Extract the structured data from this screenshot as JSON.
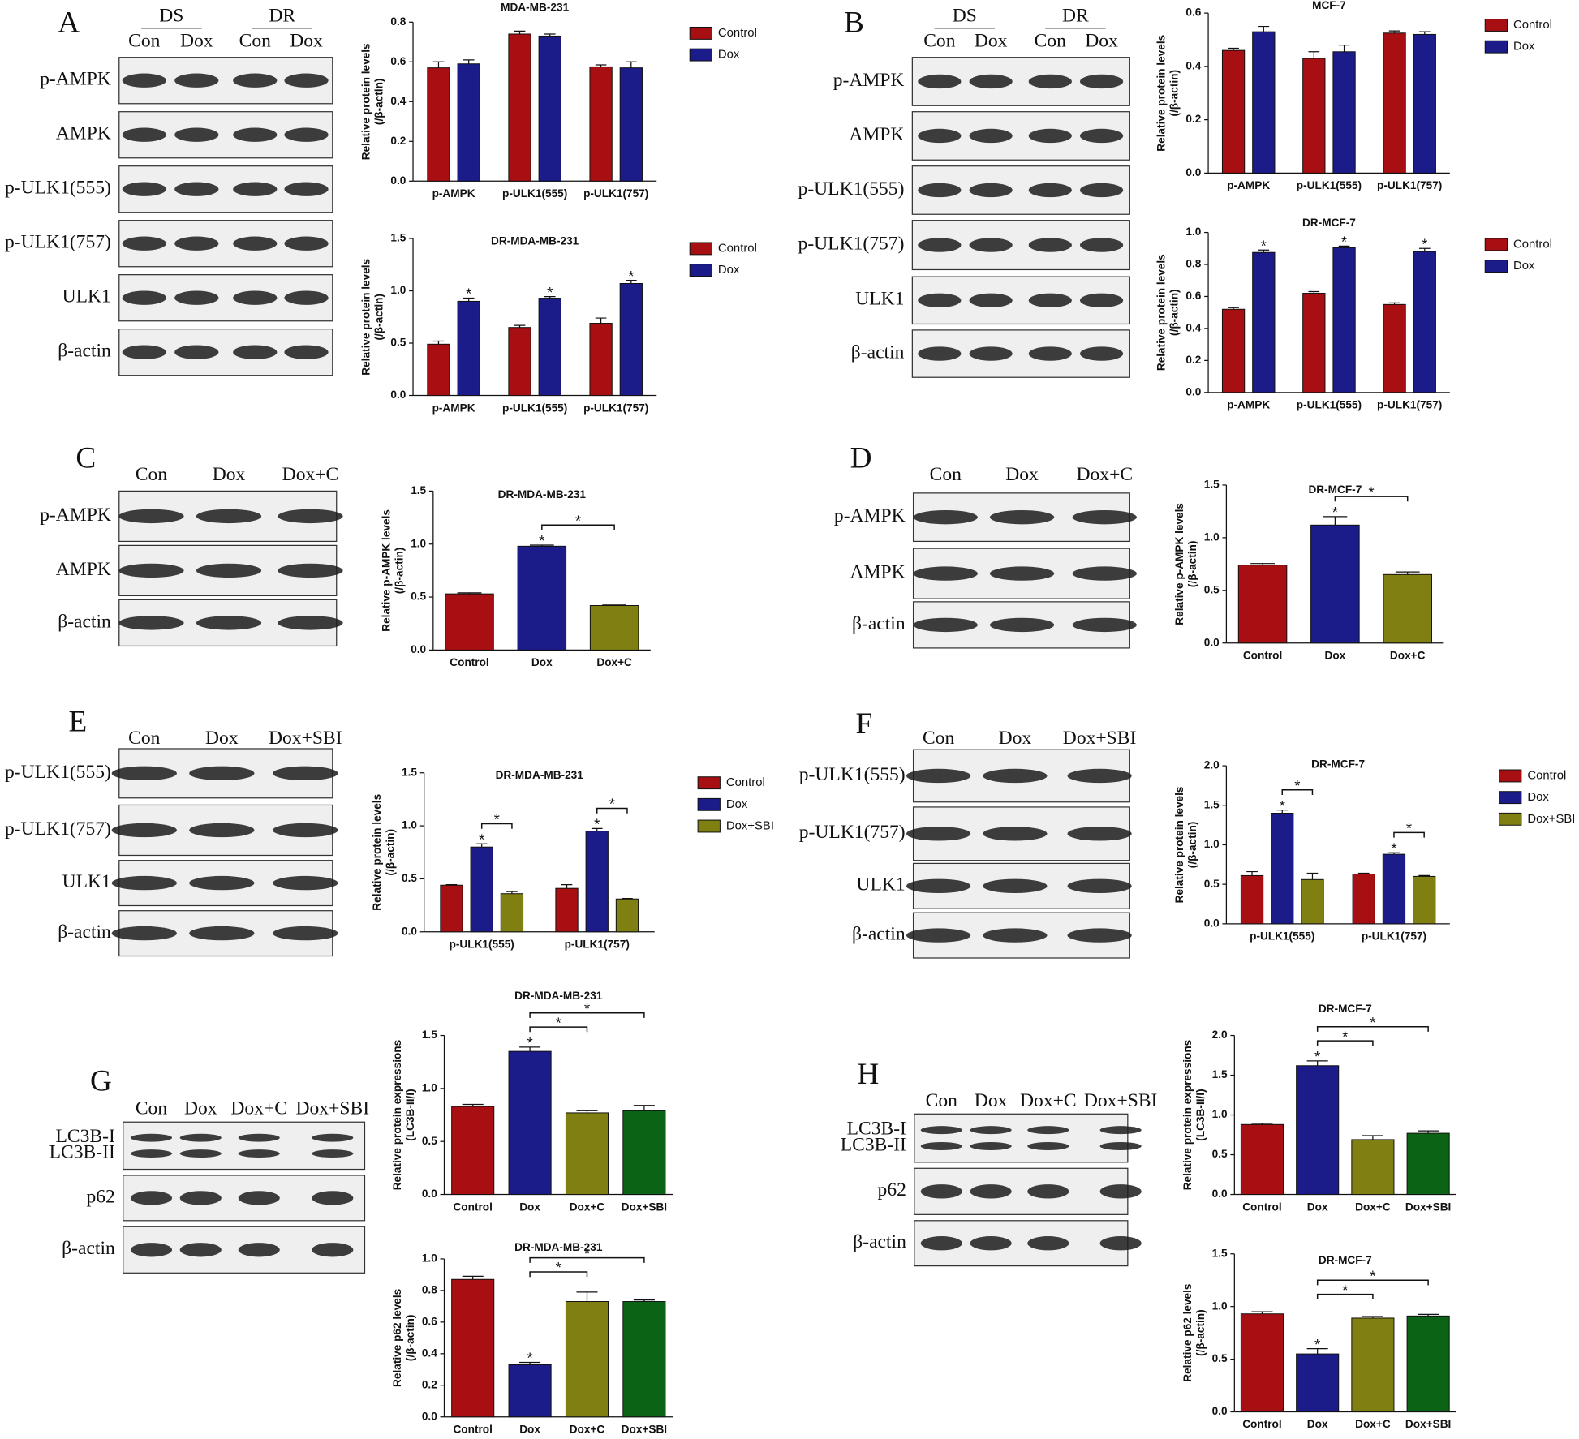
{
  "chart_data": [
    {
      "type": "bar",
      "title": "MDA-MB-231",
      "ylabel": [
        "Relative protein levels",
        "(/β-actin)"
      ],
      "categories": [
        "p-AMPK",
        "p-ULK1(555)",
        "p-ULK1(757)"
      ],
      "series": [
        {
          "name": "Control",
          "color": "#a80f12",
          "values": [
            0.57,
            0.74,
            0.575
          ],
          "errors": [
            0.03,
            0.015,
            0.01
          ]
        },
        {
          "name": "Dox",
          "color": "#1b1b8a",
          "values": [
            0.59,
            0.73,
            0.57
          ],
          "errors": [
            0.02,
            0.01,
            0.03
          ]
        }
      ],
      "ylim": [
        0,
        0.8
      ],
      "yticks": [
        {
          "value": 0,
          "label": "0.0"
        },
        0.2,
        0.4,
        0.6,
        0.8
      ],
      "annotations": []
    },
    {
      "type": "bar",
      "title": "DR-MDA-MB-231",
      "ylabel": [
        "Relative protein levels",
        "(/β-actin)"
      ],
      "categories": [
        "p-AMPK",
        "p-ULK1(555)",
        "p-ULK1(757)"
      ],
      "series": [
        {
          "name": "Control",
          "color": "#a80f12",
          "values": [
            0.49,
            0.65,
            0.69
          ],
          "errors": [
            0.03,
            0.02,
            0.05
          ]
        },
        {
          "name": "Dox",
          "color": "#1b1b8a",
          "values": [
            0.9,
            0.93,
            1.07
          ],
          "errors": [
            0.03,
            0.015,
            0.03
          ]
        }
      ],
      "ylim": [
        0,
        1.5
      ],
      "yticks": [
        {
          "value": 0,
          "label": "0.0"
        },
        0.5,
        {
          "value": 1,
          "label": "1.0"
        },
        1.5
      ],
      "annotations": [
        {
          "label": "*",
          "series": 1,
          "index": 0
        },
        {
          "label": "*",
          "series": 1,
          "index": 1
        },
        {
          "label": "*",
          "series": 1,
          "index": 2
        }
      ]
    },
    {
      "type": "bar",
      "title": "MCF-7",
      "ylabel": [
        "Relative protein levels",
        "(/β-actin)"
      ],
      "categories": [
        "p-AMPK",
        "p-ULK1(555)",
        "p-ULK1(757)"
      ],
      "series": [
        {
          "name": "Control",
          "color": "#a80f12",
          "values": [
            0.46,
            0.43,
            0.525
          ],
          "errors": [
            0.008,
            0.025,
            0.008
          ]
        },
        {
          "name": "Dox",
          "color": "#1b1b8a",
          "values": [
            0.53,
            0.455,
            0.52
          ],
          "errors": [
            0.02,
            0.025,
            0.01
          ]
        }
      ],
      "ylim": [
        0,
        0.6
      ],
      "yticks": [
        {
          "value": 0,
          "label": "0.0"
        },
        0.2,
        0.4,
        0.6
      ],
      "annotations": []
    },
    {
      "type": "bar",
      "title": "DR-MCF-7",
      "ylabel": [
        "Relative protein levels",
        "(/β-actin)"
      ],
      "categories": [
        "p-AMPK",
        "p-ULK1(555)",
        "p-ULK1(757)"
      ],
      "series": [
        {
          "name": "Control",
          "color": "#a80f12",
          "values": [
            0.52,
            0.62,
            0.55
          ],
          "errors": [
            0.01,
            0.01,
            0.01
          ]
        },
        {
          "name": "Dox",
          "color": "#1b1b8a",
          "values": [
            0.875,
            0.905,
            0.88
          ],
          "errors": [
            0.015,
            0.01,
            0.02
          ]
        }
      ],
      "ylim": [
        0,
        1
      ],
      "yticks": [
        {
          "value": 0,
          "label": "0.0"
        },
        0.2,
        0.4,
        0.6,
        0.8,
        {
          "value": 1,
          "label": "1.0"
        }
      ],
      "annotations": [
        {
          "label": "*",
          "series": 1,
          "index": 0
        },
        {
          "label": "*",
          "series": 1,
          "index": 1
        },
        {
          "label": "*",
          "series": 1,
          "index": 2
        }
      ]
    },
    {
      "type": "bar",
      "title": "DR-MDA-MB-231",
      "ylabel": [
        "Relative p-AMPK levels",
        "(/β-actin)"
      ],
      "categories": [
        "Control",
        "Dox",
        "Dox+C"
      ],
      "colors": [
        "#a80f12",
        "#1b1b8a",
        "#7f7f12"
      ],
      "values": [
        0.53,
        0.98,
        0.42
      ],
      "errors": [
        0.01,
        0.01,
        0.005
      ],
      "ylim": [
        0,
        1.5
      ],
      "yticks": [
        {
          "value": 0,
          "label": "0.0"
        },
        0.5,
        {
          "value": 1,
          "label": "1.0"
        },
        1.5
      ],
      "annotations": [
        {
          "label": "*",
          "index": 1
        },
        {
          "label": "*",
          "from": 1,
          "to": 2
        }
      ]
    },
    {
      "type": "bar",
      "title": "DR-MCF-7",
      "ylabel": [
        "Relative p-AMPK levels",
        "(/β-actin)"
      ],
      "categories": [
        "Control",
        "Dox",
        "Dox+C"
      ],
      "colors": [
        "#a80f12",
        "#1b1b8a",
        "#7f7f12"
      ],
      "values": [
        0.74,
        1.12,
        0.65
      ],
      "errors": [
        0.015,
        0.08,
        0.025
      ],
      "ylim": [
        0,
        1.5
      ],
      "yticks": [
        {
          "value": 0,
          "label": "0.0"
        },
        0.5,
        {
          "value": 1,
          "label": "1.0"
        },
        1.5
      ],
      "annotations": [
        {
          "label": "*",
          "index": 1
        },
        {
          "label": "*",
          "from": 1,
          "to": 2
        }
      ]
    },
    {
      "type": "bar",
      "title": "DR-MDA-MB-231",
      "ylabel": [
        "Relative protein levels",
        "(/β-actin)"
      ],
      "categories": [
        "p-ULK1(555)",
        "p-ULK1(757)"
      ],
      "series": [
        {
          "name": "Control",
          "color": "#a80f12",
          "values": [
            0.44,
            0.41
          ],
          "errors": [
            0.005,
            0.035
          ]
        },
        {
          "name": "Dox",
          "color": "#1b1b8a",
          "values": [
            0.8,
            0.95
          ],
          "errors": [
            0.03,
            0.025
          ]
        },
        {
          "name": "Dox+SBI",
          "color": "#7f7f12",
          "values": [
            0.36,
            0.31
          ],
          "errors": [
            0.02,
            0.005
          ]
        }
      ],
      "ylim": [
        0,
        1.5
      ],
      "yticks": [
        {
          "value": 0,
          "label": "0.0"
        },
        0.5,
        {
          "value": 1,
          "label": "1.0"
        },
        1.5
      ],
      "annotations": [
        {
          "label": "*",
          "series": 1,
          "index": 0
        },
        {
          "label": "*",
          "series": 1,
          "index": 1
        },
        {
          "label": "*",
          "category": 0,
          "from": 1,
          "to": 2
        },
        {
          "label": "*",
          "category": 1,
          "from": 1,
          "to": 2
        }
      ]
    },
    {
      "type": "bar",
      "title": "DR-MCF-7",
      "ylabel": [
        "Relative protein levels",
        "(/β-actin)"
      ],
      "categories": [
        "p-ULK1(555)",
        "p-ULK1(757)"
      ],
      "series": [
        {
          "name": "Control",
          "color": "#a80f12",
          "values": [
            0.61,
            0.63
          ],
          "errors": [
            0.05,
            0.01
          ]
        },
        {
          "name": "Dox",
          "color": "#1b1b8a",
          "values": [
            1.4,
            0.88
          ],
          "errors": [
            0.04,
            0.02
          ]
        },
        {
          "name": "Dox+SBI",
          "color": "#7f7f12",
          "values": [
            0.56,
            0.6
          ],
          "errors": [
            0.08,
            0.01
          ]
        }
      ],
      "ylim": [
        0,
        2
      ],
      "yticks": [
        {
          "value": 0,
          "label": "0.0"
        },
        0.5,
        {
          "value": 1,
          "label": "1.0"
        },
        1.5,
        {
          "value": 2,
          "label": "2.0"
        }
      ],
      "annotations": [
        {
          "label": "*",
          "series": 1,
          "index": 0
        },
        {
          "label": "*",
          "series": 1,
          "index": 1
        },
        {
          "label": "*",
          "category": 0,
          "from": 1,
          "to": 2
        },
        {
          "label": "*",
          "category": 1,
          "from": 1,
          "to": 2
        }
      ]
    },
    {
      "type": "bar",
      "title": "DR-MDA-MB-231",
      "ylabel": [
        "Relative protein expressions",
        "(LC3B-II/I)"
      ],
      "categories": [
        "Control",
        "Dox",
        "Dox+C",
        "Dox+SBI"
      ],
      "colors": [
        "#a80f12",
        "#1b1b8a",
        "#7f7f12",
        "#0b6416"
      ],
      "values": [
        0.83,
        1.35,
        0.77,
        0.79
      ],
      "errors": [
        0.02,
        0.04,
        0.02,
        0.05
      ],
      "ylim": [
        0,
        1.5
      ],
      "yticks": [
        {
          "value": 0,
          "label": "0.0"
        },
        0.5,
        {
          "value": 1,
          "label": "1.0"
        },
        1.5
      ],
      "annotations": [
        {
          "label": "*",
          "index": 1
        },
        {
          "label": "*",
          "from": 1,
          "to": 2
        },
        {
          "label": "*",
          "from": 1,
          "to": 3
        }
      ]
    },
    {
      "type": "bar",
      "title": "DR-MDA-MB-231",
      "ylabel": [
        "Relative p62 levels",
        "(/β-actin)"
      ],
      "categories": [
        "Control",
        "Dox",
        "Dox+C",
        "Dox+SBI"
      ],
      "colors": [
        "#a80f12",
        "#1b1b8a",
        "#7f7f12",
        "#0b6416"
      ],
      "values": [
        0.87,
        0.33,
        0.73,
        0.73
      ],
      "errors": [
        0.02,
        0.015,
        0.06,
        0.01
      ],
      "ylim": [
        0,
        1
      ],
      "yticks": [
        {
          "value": 0,
          "label": "0.0"
        },
        0.2,
        0.4,
        0.6,
        0.8,
        {
          "value": 1,
          "label": "1.0"
        }
      ],
      "annotations": [
        {
          "label": "*",
          "index": 1
        },
        {
          "label": "*",
          "from": 1,
          "to": 2
        },
        {
          "label": "*",
          "from": 1,
          "to": 3
        }
      ]
    },
    {
      "type": "bar",
      "title": "DR-MCF-7",
      "ylabel": [
        "Relative protein expressions",
        "(LC3B-II/I)"
      ],
      "categories": [
        "Control",
        "Dox",
        "Dox+C",
        "Dox+SBI"
      ],
      "colors": [
        "#a80f12",
        "#1b1b8a",
        "#7f7f12",
        "#0b6416"
      ],
      "values": [
        0.88,
        1.62,
        0.69,
        0.77
      ],
      "errors": [
        0.015,
        0.06,
        0.05,
        0.03
      ],
      "ylim": [
        0,
        2
      ],
      "yticks": [
        {
          "value": 0,
          "label": "0.0"
        },
        0.5,
        {
          "value": 1,
          "label": "1.0"
        },
        1.5,
        {
          "value": 2,
          "label": "2.0"
        }
      ],
      "annotations": [
        {
          "label": "*",
          "index": 1
        },
        {
          "label": "*",
          "from": 1,
          "to": 2
        },
        {
          "label": "*",
          "from": 1,
          "to": 3
        }
      ]
    },
    {
      "type": "bar",
      "title": "DR-MCF-7",
      "ylabel": [
        "Relative p62 levels",
        "(/β-actin)"
      ],
      "categories": [
        "Control",
        "Dox",
        "Dox+C",
        "Dox+SBI"
      ],
      "colors": [
        "#a80f12",
        "#1b1b8a",
        "#7f7f12",
        "#0b6416"
      ],
      "values": [
        0.93,
        0.55,
        0.89,
        0.91
      ],
      "errors": [
        0.02,
        0.05,
        0.015,
        0.015
      ],
      "ylim": [
        0,
        1.5
      ],
      "yticks": [
        {
          "value": 0,
          "label": "0.0"
        },
        0.5,
        {
          "value": 1,
          "label": "1.0"
        },
        1.5
      ],
      "annotations": [
        {
          "label": "*",
          "index": 1
        },
        {
          "label": "*",
          "from": 1,
          "to": 2
        },
        {
          "label": "*",
          "from": 1,
          "to": 3
        }
      ]
    }
  ],
  "blots": [
    {
      "letter": "A",
      "groups": [
        "DS",
        "DR"
      ],
      "lanes": [
        "Con",
        "Dox",
        "Con",
        "Dox"
      ],
      "rows": [
        "p-AMPK",
        "AMPK",
        "p-ULK1(555)",
        "p-ULK1(757)",
        "ULK1",
        "β-actin"
      ]
    },
    {
      "letter": "B",
      "groups": [
        "DS",
        "DR"
      ],
      "lanes": [
        "Con",
        "Dox",
        "Con",
        "Dox"
      ],
      "rows": [
        "p-AMPK",
        "AMPK",
        "p-ULK1(555)",
        "p-ULK1(757)",
        "ULK1",
        "β-actin"
      ]
    },
    {
      "letter": "C",
      "lanes": [
        "Con",
        "Dox",
        "Dox+C"
      ],
      "rows": [
        "p-AMPK",
        "AMPK",
        "β-actin"
      ]
    },
    {
      "letter": "D",
      "lanes": [
        "Con",
        "Dox",
        "Dox+C"
      ],
      "rows": [
        "p-AMPK",
        "AMPK",
        "β-actin"
      ]
    },
    {
      "letter": "E",
      "lanes": [
        "Con",
        "Dox",
        "Dox+SBI"
      ],
      "rows": [
        "p-ULK1(555)",
        "p-ULK1(757)",
        "ULK1",
        "β-actin"
      ]
    },
    {
      "letter": "F",
      "lanes": [
        "Con",
        "Dox",
        "Dox+SBI"
      ],
      "rows": [
        "p-ULK1(555)",
        "p-ULK1(757)",
        "ULK1",
        "β-actin"
      ]
    },
    {
      "letter": "G",
      "lanes": [
        "Con",
        "Dox",
        "Dox+C",
        "Dox+SBI"
      ],
      "rows": [
        [
          "LC3B-I",
          "LC3B-II"
        ],
        "p62",
        "β-actin"
      ]
    },
    {
      "letter": "H",
      "lanes": [
        "Con",
        "Dox",
        "Dox+C",
        "Dox+SBI"
      ],
      "rows": [
        [
          "LC3B-I",
          "LC3B-II"
        ],
        "p62",
        "β-actin"
      ]
    }
  ]
}
